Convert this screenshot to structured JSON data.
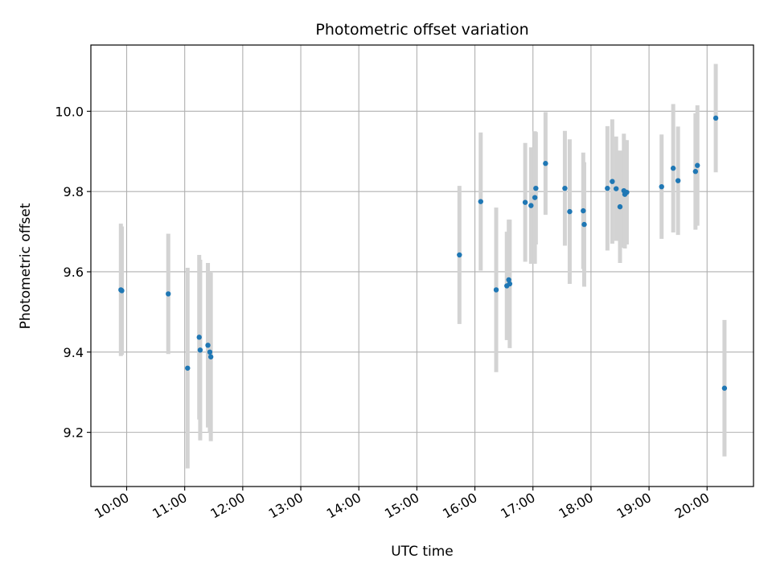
{
  "chart_data": {
    "type": "scatter",
    "title": "Photometric offset variation",
    "xlabel": "UTC time",
    "ylabel": "Photometric offset",
    "x_tick_labels": [
      "10:00",
      "11:00",
      "12:00",
      "13:00",
      "14:00",
      "15:00",
      "16:00",
      "17:00",
      "18:00",
      "19:00",
      "20:00"
    ],
    "y_tick_labels": [
      "9.2",
      "9.4",
      "9.6",
      "9.8",
      "10.0"
    ],
    "xlim": [
      "09:23",
      "20:48"
    ],
    "ylim": [
      9.065,
      10.165
    ],
    "grid": true,
    "colors": {
      "point": "#1f77b4",
      "errorbar": "#d3d3d3",
      "grid": "#b0b0b0"
    },
    "series": [
      {
        "x": [
          "09:54",
          "09:55",
          "10:43",
          "11:03",
          "11:15",
          "11:16",
          "11:24",
          "11:26",
          "11:27",
          "15:44",
          "16:06",
          "16:22",
          "16:33",
          "16:35",
          "16:36",
          "16:52",
          "16:58",
          "17:02",
          "17:03",
          "17:13",
          "17:33",
          "17:38",
          "17:52",
          "17:53",
          "18:17",
          "18:22",
          "18:26",
          "18:30",
          "18:34",
          "18:35",
          "18:37",
          "19:13",
          "19:25",
          "19:30",
          "19:48",
          "19:50",
          "20:09",
          "20:18"
        ],
        "y": [
          9.555,
          9.553,
          9.545,
          9.36,
          9.437,
          9.405,
          9.417,
          9.4,
          9.388,
          9.642,
          9.775,
          9.555,
          9.565,
          9.58,
          9.57,
          9.773,
          9.765,
          9.785,
          9.808,
          9.87,
          9.808,
          9.75,
          9.752,
          9.718,
          9.808,
          9.825,
          9.807,
          9.762,
          9.802,
          9.793,
          9.798,
          9.812,
          9.858,
          9.827,
          9.85,
          9.865,
          9.983,
          9.31
        ],
        "yerr": [
          0.165,
          0.16,
          0.15,
          0.25,
          0.205,
          0.225,
          0.205,
          0.2,
          0.21,
          0.172,
          0.172,
          0.205,
          0.135,
          0.15,
          0.16,
          0.148,
          0.145,
          0.165,
          0.14,
          0.128,
          0.143,
          0.18,
          0.145,
          0.155,
          0.155,
          0.155,
          0.13,
          0.14,
          0.142,
          0.135,
          0.13,
          0.13,
          0.16,
          0.135,
          0.145,
          0.15,
          0.135,
          0.17
        ]
      }
    ]
  }
}
